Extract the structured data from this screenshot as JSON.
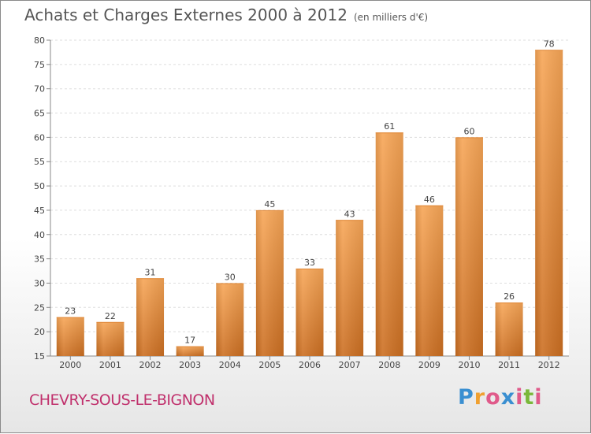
{
  "header": {
    "title": "Achats et Charges Externes 2000 à 2012",
    "unit": "(en milliers d'€)"
  },
  "footer": {
    "location": "CHEVRY-SOUS-LE-BIGNON",
    "logo_text": "Proxiti",
    "logo_colors": [
      "#3a8fd1",
      "#f0a030",
      "#e05a8a",
      "#3a8fd1",
      "#e05a8a",
      "#7ab83a",
      "#e05a8a"
    ]
  },
  "chart_data": {
    "type": "bar",
    "categories": [
      "2000",
      "2001",
      "2002",
      "2003",
      "2004",
      "2005",
      "2006",
      "2007",
      "2008",
      "2009",
      "2010",
      "2011",
      "2012"
    ],
    "values": [
      23,
      22,
      31,
      17,
      30,
      45,
      33,
      43,
      61,
      46,
      60,
      26,
      78
    ],
    "ylim": [
      15,
      80
    ],
    "yticks": [
      15,
      20,
      25,
      30,
      35,
      40,
      45,
      50,
      55,
      60,
      65,
      70,
      75,
      80
    ],
    "grid": true,
    "bar_color": "#f0a050",
    "bar_color_dark": "#c8702a",
    "data_labels": true
  }
}
